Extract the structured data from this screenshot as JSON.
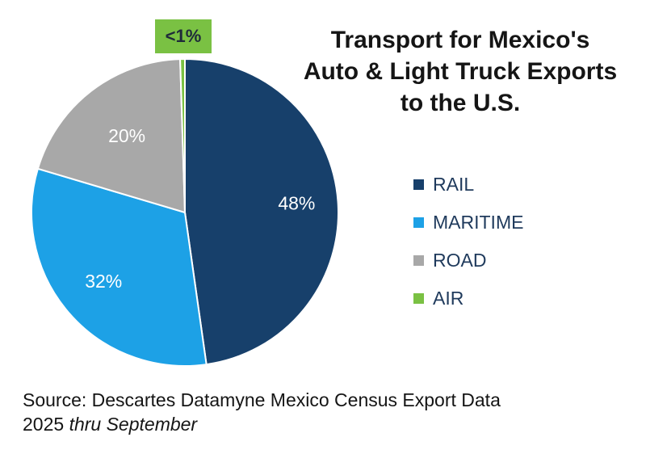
{
  "chart_data": {
    "type": "pie",
    "title": [
      "Transport for Mexico's",
      "Auto & Light Truck Exports",
      "to the U.S."
    ],
    "slices": [
      {
        "name": "RAIL",
        "value": 48,
        "label": "48%",
        "color": "#17406b"
      },
      {
        "name": "MARITIME",
        "value": 32,
        "label": "32%",
        "color": "#1da1e6"
      },
      {
        "name": "ROAD",
        "value": 20,
        "label": "20%",
        "color": "#a8a8a8"
      },
      {
        "name": "AIR",
        "value": 0.5,
        "label": "<1%",
        "color": "#7ac143"
      }
    ],
    "legend_position": "right"
  },
  "source": {
    "line1": "Source: Descartes Datamyne Mexico Census Export Data",
    "line2_year": "2025",
    "line2_note": "thru September"
  }
}
